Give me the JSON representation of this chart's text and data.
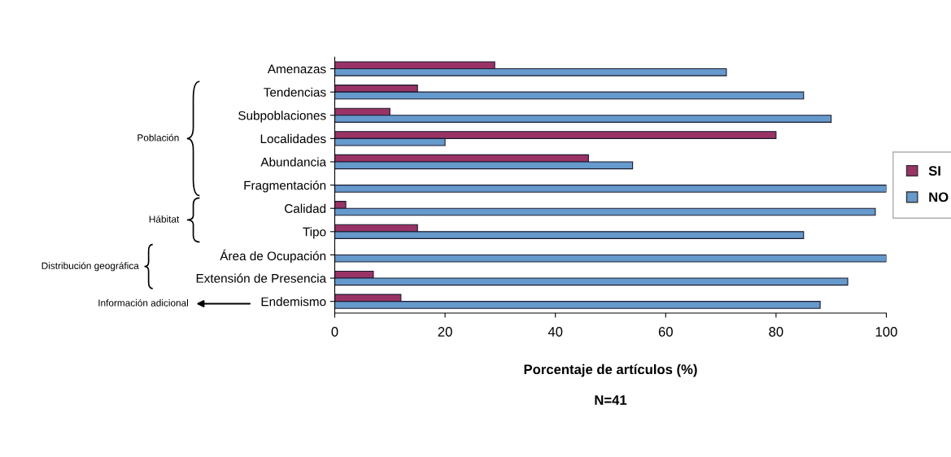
{
  "chart_data": {
    "type": "bar",
    "orientation": "horizontal",
    "categories": [
      "Amenazas",
      "Tendencias",
      "Subpoblaciones",
      "Localidades",
      "Abundancia",
      "Fragmentación",
      "Calidad",
      "Tipo",
      "Área de Ocupación",
      "Extensión de Presencia",
      "Endemismo"
    ],
    "series": [
      {
        "name": "SI",
        "color": "#993366",
        "values": [
          29,
          15,
          10,
          80,
          46,
          0,
          2,
          15,
          0,
          7,
          12
        ]
      },
      {
        "name": "NO",
        "color": "#6699cc",
        "values": [
          71,
          85,
          90,
          20,
          54,
          100,
          98,
          85,
          100,
          93,
          88
        ]
      }
    ],
    "xlabel": "Porcentaje de artículos (%)",
    "xlim": [
      0,
      100
    ],
    "xticks": [
      0,
      20,
      40,
      60,
      80,
      100
    ],
    "grid": false,
    "legend": "right",
    "annotations": [
      "Población",
      "Hábitat",
      "Distribución geográfica",
      "Información adicional",
      "N=41"
    ]
  }
}
